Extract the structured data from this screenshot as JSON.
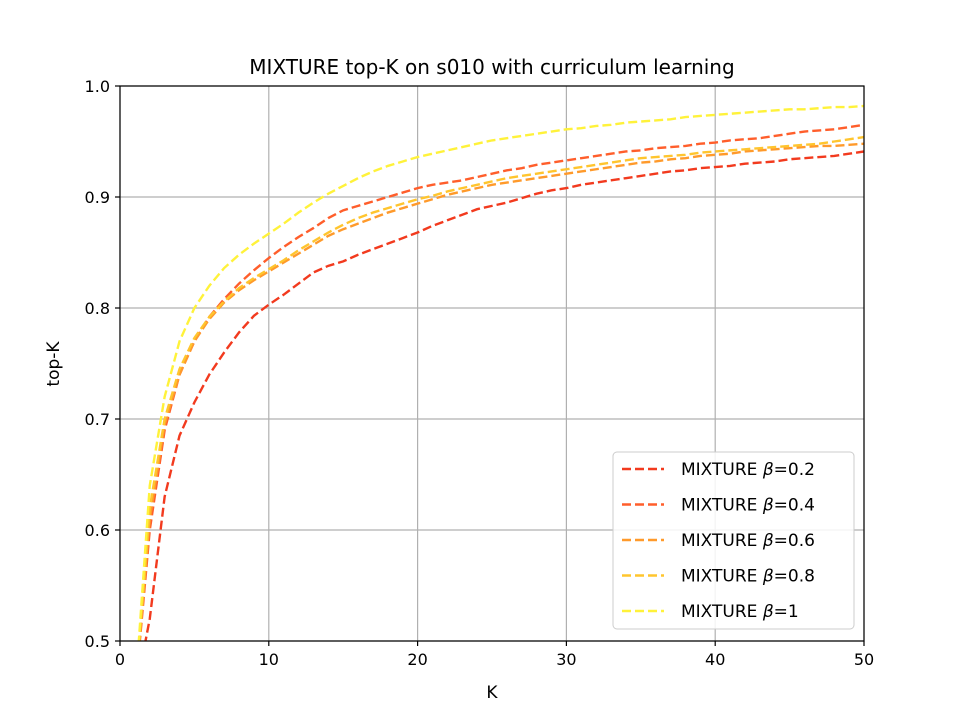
{
  "chart_data": {
    "type": "line",
    "title": "MIXTURE top-K on s010 with curriculum learning",
    "xlabel": "K",
    "ylabel": "top-K",
    "xlim": [
      0,
      50
    ],
    "ylim": [
      0.5,
      1.0
    ],
    "xticks": [
      "0",
      "10",
      "20",
      "30",
      "40",
      "50"
    ],
    "yticks": [
      "0.5",
      "0.6",
      "0.7",
      "0.8",
      "0.9",
      "1.0"
    ],
    "grid": true,
    "legend_position": "lower-right",
    "line_style": "dashed",
    "x": [
      1,
      2,
      3,
      4,
      5,
      6,
      7,
      8,
      9,
      10,
      11,
      12,
      13,
      14,
      15,
      16,
      17,
      18,
      19,
      20,
      21,
      22,
      23,
      24,
      25,
      26,
      27,
      28,
      29,
      30,
      31,
      32,
      33,
      34,
      35,
      36,
      37,
      38,
      39,
      40,
      41,
      42,
      43,
      44,
      45,
      46,
      47,
      48,
      49,
      50
    ],
    "series": [
      {
        "name": "MIXTURE β=0.2",
        "legend_prefix": "MIXTURE ",
        "legend_param": "β",
        "legend_value": "=0.2",
        "color": "#f23a1e",
        "values": [
          0.45,
          0.52,
          0.63,
          0.685,
          0.715,
          0.74,
          0.76,
          0.778,
          0.793,
          0.803,
          0.812,
          0.822,
          0.832,
          0.838,
          0.842,
          0.848,
          0.853,
          0.858,
          0.863,
          0.868,
          0.874,
          0.879,
          0.884,
          0.889,
          0.892,
          0.895,
          0.899,
          0.903,
          0.906,
          0.908,
          0.911,
          0.913,
          0.915,
          0.917,
          0.919,
          0.921,
          0.923,
          0.924,
          0.926,
          0.927,
          0.928,
          0.93,
          0.931,
          0.932,
          0.934,
          0.935,
          0.936,
          0.937,
          0.939,
          0.941
        ]
      },
      {
        "name": "MIXTURE β=0.4",
        "legend_prefix": "MIXTURE ",
        "legend_param": "β",
        "legend_value": "=0.4",
        "color": "#ff5e2b",
        "values": [
          0.45,
          0.6,
          0.69,
          0.74,
          0.77,
          0.792,
          0.808,
          0.822,
          0.834,
          0.845,
          0.855,
          0.864,
          0.872,
          0.881,
          0.888,
          0.892,
          0.896,
          0.9,
          0.904,
          0.908,
          0.911,
          0.913,
          0.915,
          0.918,
          0.921,
          0.924,
          0.926,
          0.929,
          0.931,
          0.933,
          0.935,
          0.937,
          0.939,
          0.941,
          0.942,
          0.944,
          0.945,
          0.946,
          0.948,
          0.949,
          0.951,
          0.952,
          0.953,
          0.955,
          0.957,
          0.959,
          0.96,
          0.961,
          0.963,
          0.965
        ]
      },
      {
        "name": "MIXTURE β=0.6",
        "legend_prefix": "MIXTURE ",
        "legend_param": "β",
        "legend_value": "=0.6",
        "color": "#ff9a2b",
        "values": [
          0.45,
          0.61,
          0.695,
          0.74,
          0.77,
          0.79,
          0.805,
          0.816,
          0.825,
          0.833,
          0.841,
          0.849,
          0.857,
          0.865,
          0.871,
          0.876,
          0.881,
          0.886,
          0.89,
          0.894,
          0.898,
          0.902,
          0.905,
          0.908,
          0.911,
          0.913,
          0.915,
          0.917,
          0.919,
          0.921,
          0.923,
          0.925,
          0.927,
          0.929,
          0.931,
          0.932,
          0.934,
          0.935,
          0.937,
          0.938,
          0.939,
          0.941,
          0.942,
          0.943,
          0.944,
          0.945,
          0.946,
          0.946,
          0.947,
          0.948
        ]
      },
      {
        "name": "MIXTURE β=0.8",
        "legend_prefix": "MIXTURE ",
        "legend_param": "β",
        "legend_value": "=0.8",
        "color": "#ffc52e",
        "values": [
          0.45,
          0.62,
          0.7,
          0.745,
          0.773,
          0.792,
          0.806,
          0.818,
          0.827,
          0.835,
          0.843,
          0.852,
          0.86,
          0.868,
          0.875,
          0.881,
          0.886,
          0.89,
          0.894,
          0.898,
          0.901,
          0.905,
          0.908,
          0.911,
          0.914,
          0.917,
          0.919,
          0.921,
          0.923,
          0.925,
          0.927,
          0.929,
          0.931,
          0.933,
          0.935,
          0.936,
          0.937,
          0.938,
          0.94,
          0.941,
          0.942,
          0.943,
          0.944,
          0.945,
          0.946,
          0.947,
          0.948,
          0.95,
          0.952,
          0.954
        ]
      },
      {
        "name": "MIXTURE β=1",
        "legend_prefix": "MIXTURE ",
        "legend_param": "β",
        "legend_value": "=1",
        "color": "#fff23a",
        "values": [
          0.45,
          0.64,
          0.72,
          0.77,
          0.8,
          0.82,
          0.836,
          0.848,
          0.858,
          0.867,
          0.876,
          0.886,
          0.895,
          0.903,
          0.91,
          0.917,
          0.923,
          0.928,
          0.932,
          0.936,
          0.939,
          0.942,
          0.945,
          0.948,
          0.951,
          0.953,
          0.955,
          0.957,
          0.959,
          0.961,
          0.962,
          0.964,
          0.965,
          0.967,
          0.968,
          0.969,
          0.97,
          0.972,
          0.973,
          0.974,
          0.975,
          0.976,
          0.977,
          0.978,
          0.979,
          0.979,
          0.98,
          0.981,
          0.981,
          0.982
        ]
      }
    ]
  }
}
